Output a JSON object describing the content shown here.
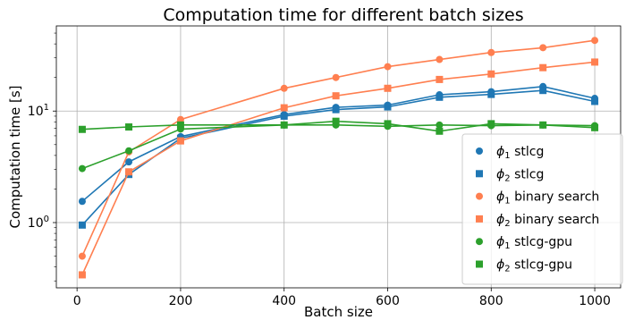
{
  "chart_data": {
    "type": "line",
    "title": "Computation time for different batch sizes",
    "xlabel": "Batch size",
    "ylabel": "Computation time [s]",
    "x": [
      10,
      100,
      200,
      400,
      500,
      600,
      700,
      800,
      900,
      1000
    ],
    "xlim": [
      -40,
      1050
    ],
    "ylim": [
      0.26,
      58
    ],
    "yscale": "log",
    "grid": true,
    "legend_position": "lower right",
    "xticks": [
      {
        "value": 0,
        "label": "0"
      },
      {
        "value": 200,
        "label": "200"
      },
      {
        "value": 400,
        "label": "400"
      },
      {
        "value": 600,
        "label": "600"
      },
      {
        "value": 800,
        "label": "800"
      },
      {
        "value": 1000,
        "label": "1000"
      }
    ],
    "yticks": [
      {
        "value": 1,
        "base": "10",
        "exp": "0"
      },
      {
        "value": 10,
        "base": "10",
        "exp": "1"
      }
    ],
    "series": [
      {
        "name": "ϕ1 stlcg",
        "sym": "ϕ",
        "sub": "1",
        "rest": " stlcg",
        "color": "#1f77b4",
        "marker": "circle",
        "values": [
          1.55,
          3.5,
          5.9,
          9.3,
          10.8,
          11.3,
          14.0,
          14.9,
          16.6,
          13.0
        ]
      },
      {
        "name": "ϕ2 stlcg",
        "sym": "ϕ",
        "sub": "2",
        "rest": " stlcg",
        "color": "#1f77b4",
        "marker": "square",
        "values": [
          0.95,
          2.7,
          5.7,
          9.0,
          10.3,
          10.9,
          13.3,
          14.1,
          15.3,
          12.2
        ]
      },
      {
        "name": "ϕ1 binary search",
        "sym": "ϕ",
        "sub": "1",
        "rest": " binary search",
        "color": "#ff7f50",
        "marker": "circle",
        "values": [
          0.5,
          4.3,
          8.4,
          16.0,
          20.0,
          25.0,
          29.0,
          33.5,
          37.0,
          43.0
        ]
      },
      {
        "name": "ϕ2 binary search",
        "sym": "ϕ",
        "sub": "2",
        "rest": " binary search",
        "color": "#ff7f50",
        "marker": "square",
        "values": [
          0.34,
          2.85,
          5.4,
          10.7,
          13.7,
          16.0,
          19.2,
          21.5,
          24.5,
          27.5
        ]
      },
      {
        "name": "ϕ1 stlcg-gpu",
        "sym": "ϕ",
        "sub": "1",
        "rest": " stlcg-gpu",
        "color": "#2ca02c",
        "marker": "circle",
        "values": [
          3.05,
          4.4,
          6.9,
          7.5,
          7.5,
          7.3,
          7.5,
          7.4,
          7.5,
          7.4
        ]
      },
      {
        "name": "ϕ2 stlcg-gpu",
        "sym": "ϕ",
        "sub": "2",
        "rest": " stlcg-gpu",
        "color": "#2ca02c",
        "marker": "square",
        "values": [
          6.85,
          7.2,
          7.5,
          7.5,
          8.1,
          7.7,
          6.6,
          7.7,
          7.5,
          7.1
        ]
      }
    ]
  }
}
